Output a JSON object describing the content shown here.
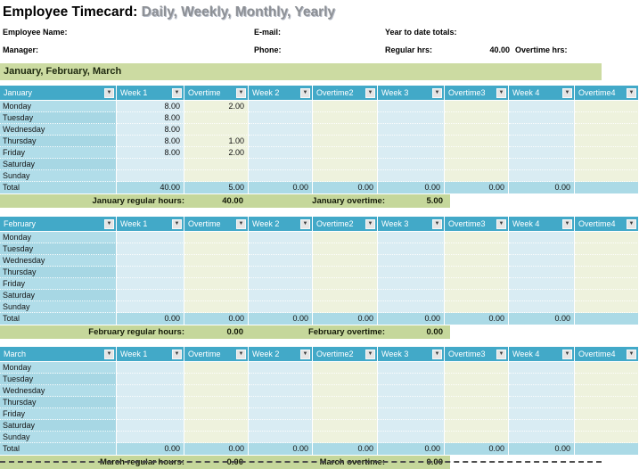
{
  "title": {
    "main": "Employee Timecard:",
    "sub": " Daily, Weekly, Monthly, Yearly"
  },
  "info": {
    "employee_name_label": "Employee Name:",
    "manager_label": "Manager:",
    "email_label": "E-mail:",
    "phone_label": "Phone:",
    "ytd_label": "Year to date totals:",
    "regular_hrs_label": "Regular hrs:",
    "regular_hrs_value": "40.00",
    "overtime_hrs_label": "Overtime hrs:"
  },
  "section_title": "January, February, March",
  "table": {
    "columns": [
      "Week 1",
      "Overtime",
      "Week 2",
      "Overtime2",
      "Week 3",
      "Overtime3",
      "Week 4",
      "Overtime4"
    ],
    "days": [
      "Monday",
      "Tuesday",
      "Wednesday",
      "Thursday",
      "Friday",
      "Saturday",
      "Sunday"
    ],
    "total_label": "Total",
    "filter_icon": "▼"
  },
  "months": [
    {
      "name": "January",
      "cells": [
        [
          "8.00",
          "2.00",
          "",
          "",
          "",
          "",
          "",
          ""
        ],
        [
          "8.00",
          "",
          "",
          "",
          "",
          "",
          "",
          ""
        ],
        [
          "8.00",
          "",
          "",
          "",
          "",
          "",
          "",
          ""
        ],
        [
          "8.00",
          "1.00",
          "",
          "",
          "",
          "",
          "",
          ""
        ],
        [
          "8.00",
          "2.00",
          "",
          "",
          "",
          "",
          "",
          ""
        ],
        [
          "",
          "",
          "",
          "",
          "",
          "",
          "",
          ""
        ],
        [
          "",
          "",
          "",
          "",
          "",
          "",
          "",
          ""
        ]
      ],
      "totals": [
        "40.00",
        "5.00",
        "0.00",
        "0.00",
        "0.00",
        "0.00",
        "0.00",
        ""
      ],
      "summary": {
        "regular_label": "January regular hours:",
        "regular_value": "40.00",
        "overtime_label": "January overtime:",
        "overtime_value": "5.00"
      }
    },
    {
      "name": "February",
      "cells": [
        [
          "",
          "",
          "",
          "",
          "",
          "",
          "",
          ""
        ],
        [
          "",
          "",
          "",
          "",
          "",
          "",
          "",
          ""
        ],
        [
          "",
          "",
          "",
          "",
          "",
          "",
          "",
          ""
        ],
        [
          "",
          "",
          "",
          "",
          "",
          "",
          "",
          ""
        ],
        [
          "",
          "",
          "",
          "",
          "",
          "",
          "",
          ""
        ],
        [
          "",
          "",
          "",
          "",
          "",
          "",
          "",
          ""
        ],
        [
          "",
          "",
          "",
          "",
          "",
          "",
          "",
          ""
        ]
      ],
      "totals": [
        "0.00",
        "0.00",
        "0.00",
        "0.00",
        "0.00",
        "0.00",
        "0.00",
        ""
      ],
      "summary": {
        "regular_label": "February regular hours:",
        "regular_value": "0.00",
        "overtime_label": "February overtime:",
        "overtime_value": "0.00"
      }
    },
    {
      "name": "March",
      "cells": [
        [
          "",
          "",
          "",
          "",
          "",
          "",
          "",
          ""
        ],
        [
          "",
          "",
          "",
          "",
          "",
          "",
          "",
          ""
        ],
        [
          "",
          "",
          "",
          "",
          "",
          "",
          "",
          ""
        ],
        [
          "",
          "",
          "",
          "",
          "",
          "",
          "",
          ""
        ],
        [
          "",
          "",
          "",
          "",
          "",
          "",
          "",
          ""
        ],
        [
          "",
          "",
          "",
          "",
          "",
          "",
          "",
          ""
        ],
        [
          "",
          "",
          "",
          "",
          "",
          "",
          "",
          ""
        ]
      ],
      "totals": [
        "0.00",
        "0.00",
        "0.00",
        "0.00",
        "0.00",
        "0.00",
        "0.00",
        ""
      ],
      "summary": {
        "regular_label": "March regular hours:",
        "regular_value": "0.00",
        "overtime_label": "March overtime:",
        "overtime_value": "0.00"
      }
    }
  ],
  "colors": {
    "header_teal": "#42a9c8",
    "row_blue": "#abdae6",
    "cell_blue": "#d9ecf3",
    "cell_cream": "#eef2dd",
    "summary_green": "#c5d79b",
    "section_green": "#ccdba2"
  }
}
